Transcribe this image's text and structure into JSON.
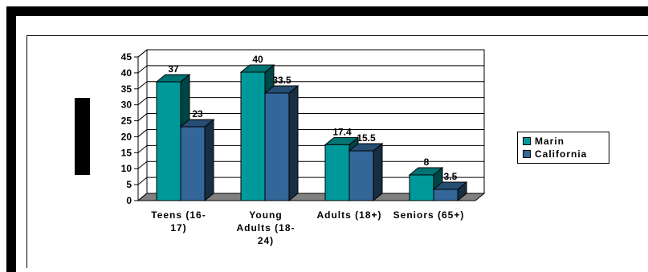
{
  "chart_data": {
    "type": "bar",
    "title": "",
    "xlabel": "",
    "ylabel": "",
    "ylim": [
      0,
      45
    ],
    "y_ticks": [
      "0",
      "5",
      "10",
      "15",
      "20",
      "25",
      "30",
      "35",
      "40",
      "45"
    ],
    "grid": true,
    "legend_position": "right",
    "style": "3d-clustered-column",
    "categories": [
      "Teens (16-17)",
      "Young Adults (18-24)",
      "Adults (18+)",
      "Seniors (65+)"
    ],
    "category_labels": [
      [
        "Teens     (16-",
        "17)"
      ],
      [
        "Young",
        "Adults  (18-",
        "24)"
      ],
      [
        "Adults (18+)"
      ],
      [
        "Seniors (65+)"
      ]
    ],
    "series": [
      {
        "name": "Marin",
        "values": [
          37,
          40,
          17.4,
          8
        ],
        "labels": [
          "37",
          "40",
          "17.4",
          "8"
        ],
        "color": "#009999"
      },
      {
        "name": "California",
        "values": [
          23,
          33.5,
          15.5,
          3.5
        ],
        "labels": [
          "23",
          "33.5",
          "15.5",
          "3.5"
        ],
        "color": "#336699"
      }
    ]
  }
}
